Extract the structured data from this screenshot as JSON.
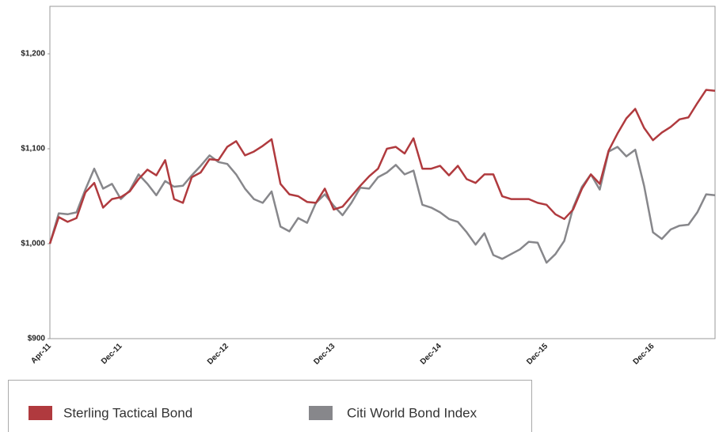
{
  "chart_data": {
    "type": "line",
    "categories": [
      "Apr-11",
      null,
      null,
      null,
      null,
      null,
      null,
      null,
      "Dec-11",
      null,
      null,
      null,
      null,
      null,
      null,
      null,
      null,
      null,
      null,
      null,
      "Dec-12",
      null,
      null,
      null,
      null,
      null,
      null,
      null,
      null,
      null,
      null,
      null,
      "Dec-13",
      null,
      null,
      null,
      null,
      null,
      null,
      null,
      null,
      null,
      null,
      null,
      "Dec-14",
      null,
      null,
      null,
      null,
      null,
      null,
      null,
      null,
      null,
      null,
      null,
      "Dec-15",
      null,
      null,
      null,
      null,
      null,
      null,
      null,
      null,
      null,
      null,
      null,
      "Dec-16",
      null,
      null,
      null,
      null,
      null,
      null,
      null
    ],
    "series": [
      {
        "name": "Sterling Tactical Bond",
        "color": "#b03a3e",
        "values": [
          1000,
          1028,
          1023,
          1027,
          1054,
          1064,
          1038,
          1047,
          1049,
          1055,
          1068,
          1078,
          1072,
          1088,
          1047,
          1043,
          1070,
          1075,
          1089,
          1088,
          1102,
          1108,
          1093,
          1097,
          1103,
          1110,
          1063,
          1052,
          1050,
          1044,
          1043,
          1058,
          1036,
          1039,
          1050,
          1061,
          1071,
          1079,
          1100,
          1102,
          1095,
          1111,
          1079,
          1079,
          1082,
          1072,
          1082,
          1068,
          1064,
          1073,
          1073,
          1050,
          1047,
          1047,
          1047,
          1043,
          1041,
          1031,
          1026,
          1036,
          1058,
          1073,
          1063,
          1098,
          1116,
          1132,
          1142,
          1122,
          1109,
          1117,
          1123,
          1131,
          1133,
          1148,
          1162,
          1161
        ]
      },
      {
        "name": "Citi World Bond Index",
        "color": "#87878b",
        "values": [
          1000,
          1032,
          1031,
          1033,
          1057,
          1079,
          1058,
          1063,
          1047,
          1056,
          1073,
          1063,
          1051,
          1066,
          1060,
          1061,
          1072,
          1082,
          1093,
          1086,
          1084,
          1073,
          1058,
          1047,
          1043,
          1055,
          1018,
          1013,
          1027,
          1022,
          1043,
          1052,
          1040,
          1030,
          1043,
          1059,
          1058,
          1070,
          1075,
          1083,
          1073,
          1077,
          1041,
          1038,
          1033,
          1026,
          1023,
          1012,
          999,
          1011,
          988,
          984,
          989,
          994,
          1002,
          1001,
          980,
          989,
          1003,
          1038,
          1060,
          1073,
          1057,
          1097,
          1102,
          1092,
          1099,
          1061,
          1012,
          1005,
          1015,
          1019,
          1020,
          1033,
          1052,
          1051
        ]
      }
    ],
    "ylim": [
      900,
      1250
    ],
    "yticks": [
      {
        "value": 900,
        "label": "$900"
      },
      {
        "value": 1000,
        "label": "$1,000"
      },
      {
        "value": 1100,
        "label": "$1,100"
      },
      {
        "value": 1200,
        "label": "$1,200"
      }
    ]
  }
}
